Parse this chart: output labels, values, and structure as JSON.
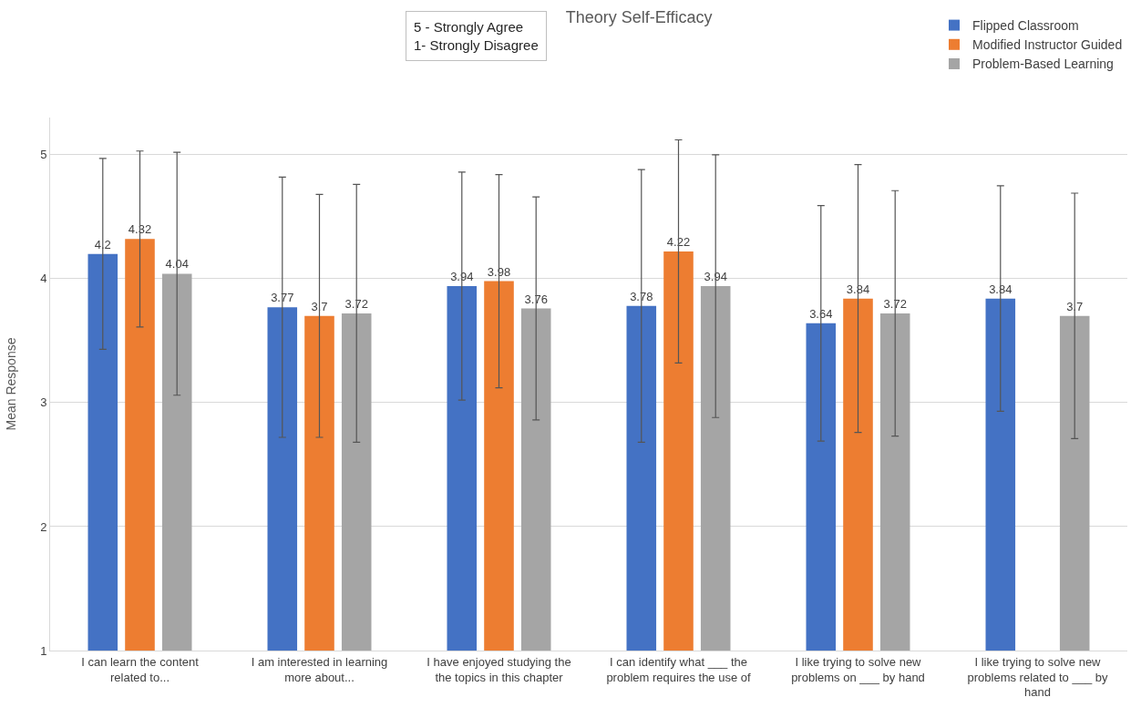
{
  "chart_data": {
    "type": "bar",
    "title": "Theory Self-Efficacy",
    "ylabel": "Mean Response",
    "annotations": [
      "5 - Strongly Agree\n1- Strongly Disagree"
    ],
    "categories": [
      "I can learn the content related to...",
      "I am interested in learning more about...",
      "I have enjoyed studying the the topics in this chapter",
      "I can identify what ___ the problem requires the use of",
      "I like trying to solve new problems on ___ by hand",
      "I like trying to solve new problems related to ___ by hand"
    ],
    "series": [
      {
        "name": "Flipped Classroom",
        "color": "#4472c4",
        "values": [
          4.2,
          3.77,
          3.94,
          3.78,
          3.64,
          3.84
        ],
        "errors": [
          0.77,
          1.05,
          0.92,
          1.1,
          0.95,
          0.91
        ]
      },
      {
        "name": "Modified Instructor Guided",
        "color": "#ed7d31",
        "values": [
          4.32,
          3.7,
          3.98,
          4.22,
          3.84,
          null
        ],
        "errors": [
          0.71,
          0.98,
          0.86,
          0.9,
          1.08,
          null
        ]
      },
      {
        "name": "Problem-Based Learning",
        "color": "#a5a5a5",
        "values": [
          4.04,
          3.72,
          3.76,
          3.94,
          3.72,
          3.7
        ],
        "errors": [
          0.98,
          1.04,
          0.9,
          1.06,
          0.99,
          0.99
        ]
      }
    ],
    "ylim": [
      1,
      5.3
    ],
    "yticks": [
      1,
      2,
      3,
      4,
      5
    ],
    "grid": "y",
    "legend": "top right",
    "data_labels": true
  }
}
